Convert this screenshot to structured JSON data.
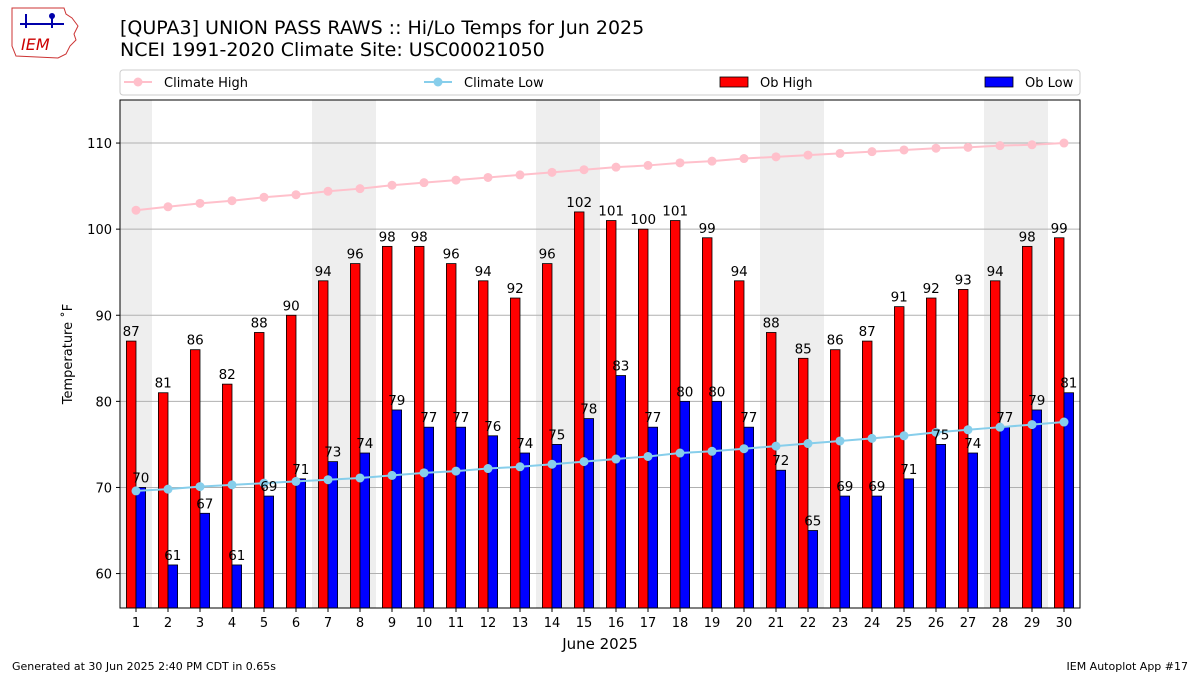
{
  "header": {
    "title_line1": "[QUPA3] UNION PASS RAWS :: Hi/Lo Temps for Jun 2025",
    "title_line2": "NCEI 1991-2020 Climate Site: USC00021050",
    "logo_text": "IEM"
  },
  "footer": {
    "generated": "Generated at 30 Jun 2025 2:40 PM CDT in 0.65s",
    "app": "IEM Autoplot App #17"
  },
  "colors": {
    "ob_high": "#ff0000",
    "ob_low": "#0000ff",
    "climate_high": "#ffc0cb",
    "climate_low": "#87ceeb",
    "weekend_band": "#eeeeee",
    "grid": "#b0b0b0"
  },
  "chart_data": {
    "type": "bar",
    "title": "[QUPA3] UNION PASS RAWS :: Hi/Lo Temps for Jun 2025",
    "subtitle": "NCEI 1991-2020 Climate Site: USC00021050",
    "xlabel": "June 2025",
    "ylabel": "Temperature $^\\circ$F",
    "ylabel_display": "Temperature ˚F",
    "ylim": [
      56,
      115
    ],
    "yticks": [
      60,
      70,
      80,
      90,
      100,
      110
    ],
    "grid": "horizontal",
    "legend_position": "top",
    "categories": [
      "1",
      "2",
      "3",
      "4",
      "5",
      "6",
      "7",
      "8",
      "9",
      "10",
      "11",
      "12",
      "13",
      "14",
      "15",
      "16",
      "17",
      "18",
      "19",
      "20",
      "21",
      "22",
      "23",
      "24",
      "25",
      "26",
      "27",
      "28",
      "29",
      "30"
    ],
    "weekend_days": [
      1,
      7,
      8,
      14,
      15,
      21,
      22,
      28,
      29
    ],
    "series": [
      {
        "name": "Ob High",
        "kind": "bar",
        "values": [
          87,
          81,
          86,
          82,
          88,
          90,
          94,
          96,
          98,
          98,
          96,
          94,
          92,
          96,
          102,
          101,
          100,
          101,
          99,
          94,
          88,
          85,
          86,
          87,
          91,
          92,
          93,
          94,
          98,
          99
        ]
      },
      {
        "name": "Ob Low",
        "kind": "bar",
        "values": [
          70,
          61,
          67,
          61,
          69,
          71,
          73,
          74,
          79,
          77,
          77,
          76,
          74,
          75,
          78,
          83,
          77,
          80,
          80,
          77,
          72,
          65,
          69,
          69,
          71,
          75,
          74,
          77,
          79,
          81
        ]
      },
      {
        "name": "Climate High",
        "kind": "line",
        "values": [
          102.2,
          102.6,
          103.0,
          103.3,
          103.7,
          104.0,
          104.4,
          104.7,
          105.1,
          105.4,
          105.7,
          106.0,
          106.3,
          106.6,
          106.9,
          107.2,
          107.4,
          107.7,
          107.9,
          108.2,
          108.4,
          108.6,
          108.8,
          109.0,
          109.2,
          109.4,
          109.5,
          109.7,
          109.8,
          110.0
        ]
      },
      {
        "name": "Climate Low",
        "kind": "line",
        "values": [
          69.6,
          69.8,
          70.1,
          70.3,
          70.5,
          70.7,
          70.9,
          71.1,
          71.4,
          71.7,
          71.9,
          72.2,
          72.4,
          72.7,
          73.0,
          73.3,
          73.6,
          74.0,
          74.2,
          74.5,
          74.8,
          75.1,
          75.4,
          75.7,
          76.0,
          76.4,
          76.7,
          77.0,
          77.3,
          77.6
        ]
      }
    ]
  }
}
